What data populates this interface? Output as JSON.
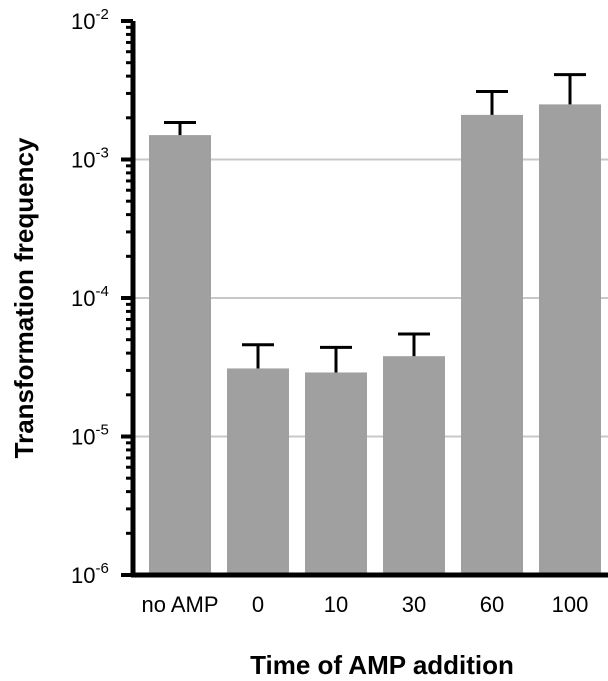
{
  "chart_data": {
    "type": "bar",
    "title": "",
    "xlabel": "Time of AMP addition",
    "ylabel": "Transformation frequency",
    "yscale": "log",
    "ylim": [
      1e-06,
      0.01
    ],
    "grid": true,
    "categories": [
      "no AMP",
      "0",
      "10",
      "30",
      "60",
      "100"
    ],
    "values": [
      0.0015,
      3.1e-05,
      2.9e-05,
      3.8e-05,
      0.0021,
      0.0025
    ],
    "error_upper": [
      0.00185,
      4.6e-05,
      4.4e-05,
      5.5e-05,
      0.0031,
      0.0041
    ],
    "y_ticks": [
      {
        "base": "10",
        "exp": "-2",
        "value": 0.01
      },
      {
        "base": "10",
        "exp": "-3",
        "value": 0.001
      },
      {
        "base": "10",
        "exp": "-4",
        "value": 0.0001
      },
      {
        "base": "10",
        "exp": "-5",
        "value": 1e-05
      },
      {
        "base": "10",
        "exp": "-6",
        "value": 1e-06
      }
    ],
    "colors": {
      "bar": "#a0a0a0",
      "error": "#000000",
      "grid": "#c8c8c8",
      "axis": "#000000"
    }
  }
}
